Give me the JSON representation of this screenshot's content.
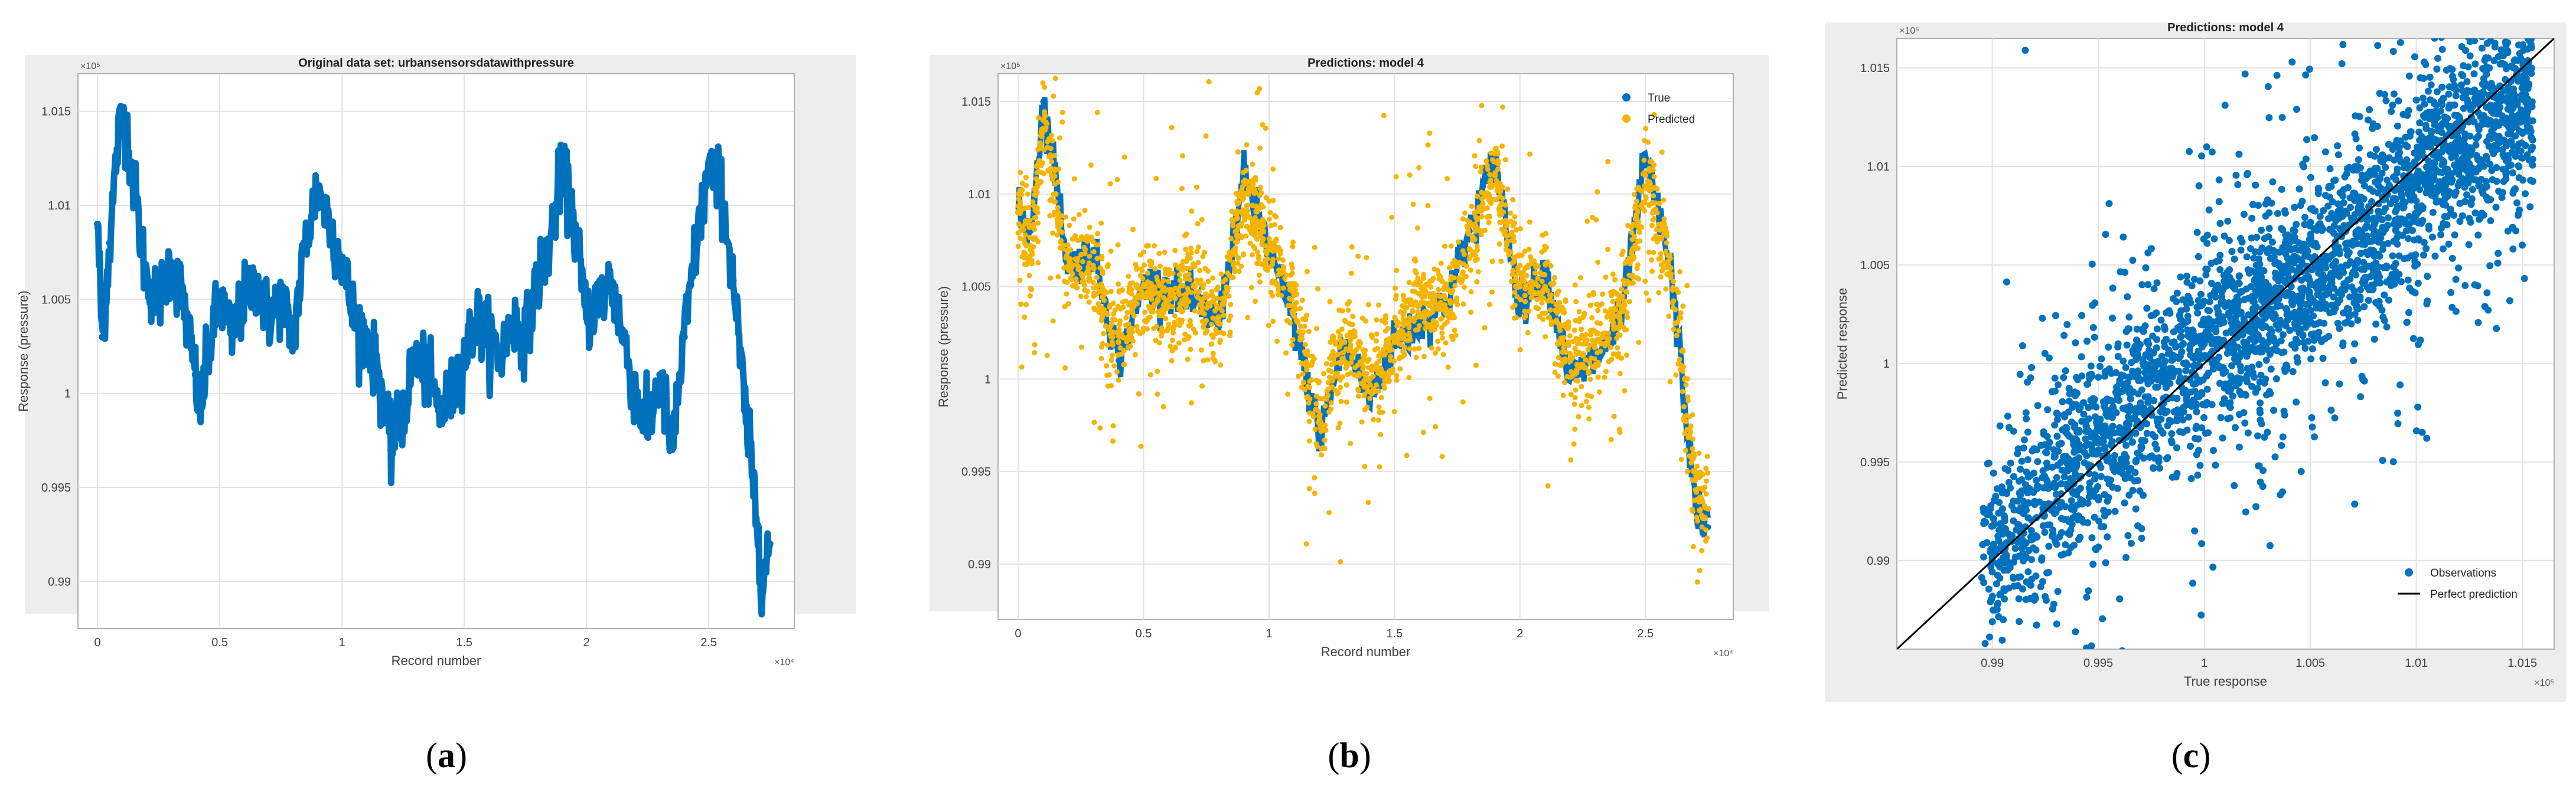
{
  "chart_data": [
    {
      "id": "a",
      "type": "line",
      "title": "Original data set: urbansensorsdatawithpressure",
      "xlabel": "Record number",
      "ylabel": "Response (pressure)",
      "x_exponent": "×10⁴",
      "y_exponent": "×10⁵",
      "xlim": [
        -0.08,
        2.85
      ],
      "ylim": [
        0.9875,
        1.017
      ],
      "xticks": [
        0,
        0.5,
        1,
        1.5,
        2,
        2.5
      ],
      "xtick_labels": [
        "0",
        "0.5",
        "1",
        "1.5",
        "2",
        "2.5"
      ],
      "yticks": [
        0.99,
        0.995,
        1,
        1.005,
        1.01,
        1.015
      ],
      "ytick_labels": [
        "0.99",
        "0.995",
        "1",
        "1.005",
        "1.01",
        "1.015"
      ],
      "grid": true,
      "series": [
        {
          "color": "#0072BD",
          "x": [
            0,
            0.02,
            0.05,
            0.08,
            0.1,
            0.12,
            0.15,
            0.2,
            0.25,
            0.3,
            0.35,
            0.4,
            0.42,
            0.45,
            0.5,
            0.55,
            0.6,
            0.65,
            0.7,
            0.75,
            0.8,
            0.85,
            0.9,
            0.95,
            1.0,
            1.05,
            1.1,
            1.15,
            1.2,
            1.25,
            1.3,
            1.35,
            1.4,
            1.45,
            1.5,
            1.55,
            1.6,
            1.65,
            1.7,
            1.75,
            1.8,
            1.85,
            1.9,
            1.95,
            2.0,
            2.05,
            2.1,
            2.15,
            2.2,
            2.25,
            2.3,
            2.35,
            2.4,
            2.45,
            2.5,
            2.55,
            2.6,
            2.65,
            2.7,
            2.72,
            2.75
          ],
          "y": [
            1.009,
            1.003,
            1.008,
            1.013,
            1.015,
            1.014,
            1.011,
            1.006,
            1.005,
            1.007,
            1.005,
            1.001,
            0.999,
            1.002,
            1.005,
            1.003,
            1.005,
            1.006,
            1.004,
            1.005,
            1.003,
            1.008,
            1.011,
            1.009,
            1.007,
            1.004,
            1.003,
            1.001,
            0.997,
            0.999,
            1.002,
            1.001,
            0.999,
            1.0,
            1.002,
            1.004,
            1.003,
            1.002,
            1.004,
            1.003,
            1.006,
            1.008,
            1.012,
            1.009,
            1.004,
            1.005,
            1.006,
            1.003,
            1.0,
            0.998,
            1.001,
            0.997,
            1.003,
            1.008,
            1.012,
            1.011,
            1.006,
            0.999,
            0.993,
            0.99,
            0.992
          ]
        }
      ]
    },
    {
      "id": "b",
      "type": "scatter",
      "title": "Predictions: model 4",
      "xlabel": "Record number",
      "ylabel": "Response (pressure)",
      "x_exponent": "×10⁴",
      "y_exponent": "×10⁵",
      "xlim": [
        -0.08,
        2.85
      ],
      "ylim": [
        0.987,
        1.0165
      ],
      "xticks": [
        0,
        0.5,
        1,
        1.5,
        2,
        2.5
      ],
      "xtick_labels": [
        "0",
        "0.5",
        "1",
        "1.5",
        "2",
        "2.5"
      ],
      "yticks": [
        0.99,
        0.995,
        1,
        1.005,
        1.01,
        1.015
      ],
      "ytick_labels": [
        "0.99",
        "0.995",
        "1",
        "1.005",
        "1.01",
        "1.015"
      ],
      "grid": true,
      "legend_position": "top-right",
      "series": [
        {
          "name": "True",
          "color": "#0072BD",
          "x": [
            0,
            0.05,
            0.1,
            0.15,
            0.2,
            0.3,
            0.4,
            0.5,
            0.6,
            0.7,
            0.8,
            0.9,
            1.0,
            1.1,
            1.2,
            1.3,
            1.4,
            1.5,
            1.6,
            1.7,
            1.8,
            1.9,
            2.0,
            2.1,
            2.2,
            2.3,
            2.4,
            2.5,
            2.6,
            2.7,
            2.75
          ],
          "y": [
            1.009,
            1.008,
            1.015,
            1.011,
            1.006,
            1.007,
            1.001,
            1.005,
            1.005,
            1.004,
            1.003,
            1.011,
            1.007,
            1.003,
            0.997,
            1.002,
            0.999,
            1.002,
            1.003,
            1.004,
            1.008,
            1.012,
            1.004,
            1.006,
            1.0,
            1.001,
            1.003,
            1.012,
            1.006,
            0.993,
            0.992
          ]
        },
        {
          "name": "Predicted",
          "color": "#F5B400",
          "x": [
            0,
            0.05,
            0.1,
            0.15,
            0.2,
            0.3,
            0.4,
            0.5,
            0.6,
            0.7,
            0.8,
            0.9,
            1.0,
            1.1,
            1.2,
            1.3,
            1.4,
            1.5,
            1.6,
            1.7,
            1.8,
            1.9,
            2.0,
            2.1,
            2.2,
            2.3,
            2.4,
            2.5,
            2.6,
            2.7,
            2.75
          ],
          "y": [
            1.009,
            1.007,
            1.014,
            1.01,
            1.006,
            1.006,
            1.002,
            1.005,
            1.004,
            1.005,
            1.003,
            1.01,
            1.007,
            1.004,
            0.998,
            1.002,
            1.0,
            1.002,
            1.004,
            1.004,
            1.007,
            1.011,
            1.005,
            1.005,
            1.001,
            1.002,
            1.003,
            1.011,
            1.006,
            0.994,
            0.993
          ]
        }
      ]
    },
    {
      "id": "c",
      "type": "scatter",
      "title": "Predictions: model 4",
      "xlabel": "True response",
      "ylabel": "Predicted response",
      "x_exponent": "×10⁵",
      "y_exponent": "×10⁵",
      "xlim": [
        0.9855,
        1.0165
      ],
      "ylim": [
        0.9855,
        1.0165
      ],
      "xticks": [
        0.99,
        0.995,
        1,
        1.005,
        1.01,
        1.015
      ],
      "xtick_labels": [
        "0.99",
        "0.995",
        "1",
        "1.005",
        "1.01",
        "1.015"
      ],
      "yticks": [
        0.99,
        0.995,
        1,
        1.005,
        1.01,
        1.015
      ],
      "ytick_labels": [
        "0.99",
        "0.995",
        "1",
        "1.005",
        "1.01",
        "1.015"
      ],
      "grid": true,
      "legend_position": "bottom-right",
      "series": [
        {
          "name": "Observations",
          "color": "#0072BD",
          "x": [
            0.99,
            0.992,
            0.995,
            0.997,
            1.0,
            1.002,
            1.005,
            1.007,
            1.01,
            1.012,
            1.015
          ],
          "y": [
            0.99,
            0.993,
            0.996,
            0.998,
            1.001,
            1.002,
            1.004,
            1.006,
            1.009,
            1.011,
            1.014
          ]
        },
        {
          "name": "Perfect prediction",
          "color": "#000000",
          "x": [
            0.9855,
            1.0165
          ],
          "y": [
            0.9855,
            1.0165
          ]
        }
      ]
    }
  ],
  "captions": [
    "a",
    "b",
    "c"
  ]
}
